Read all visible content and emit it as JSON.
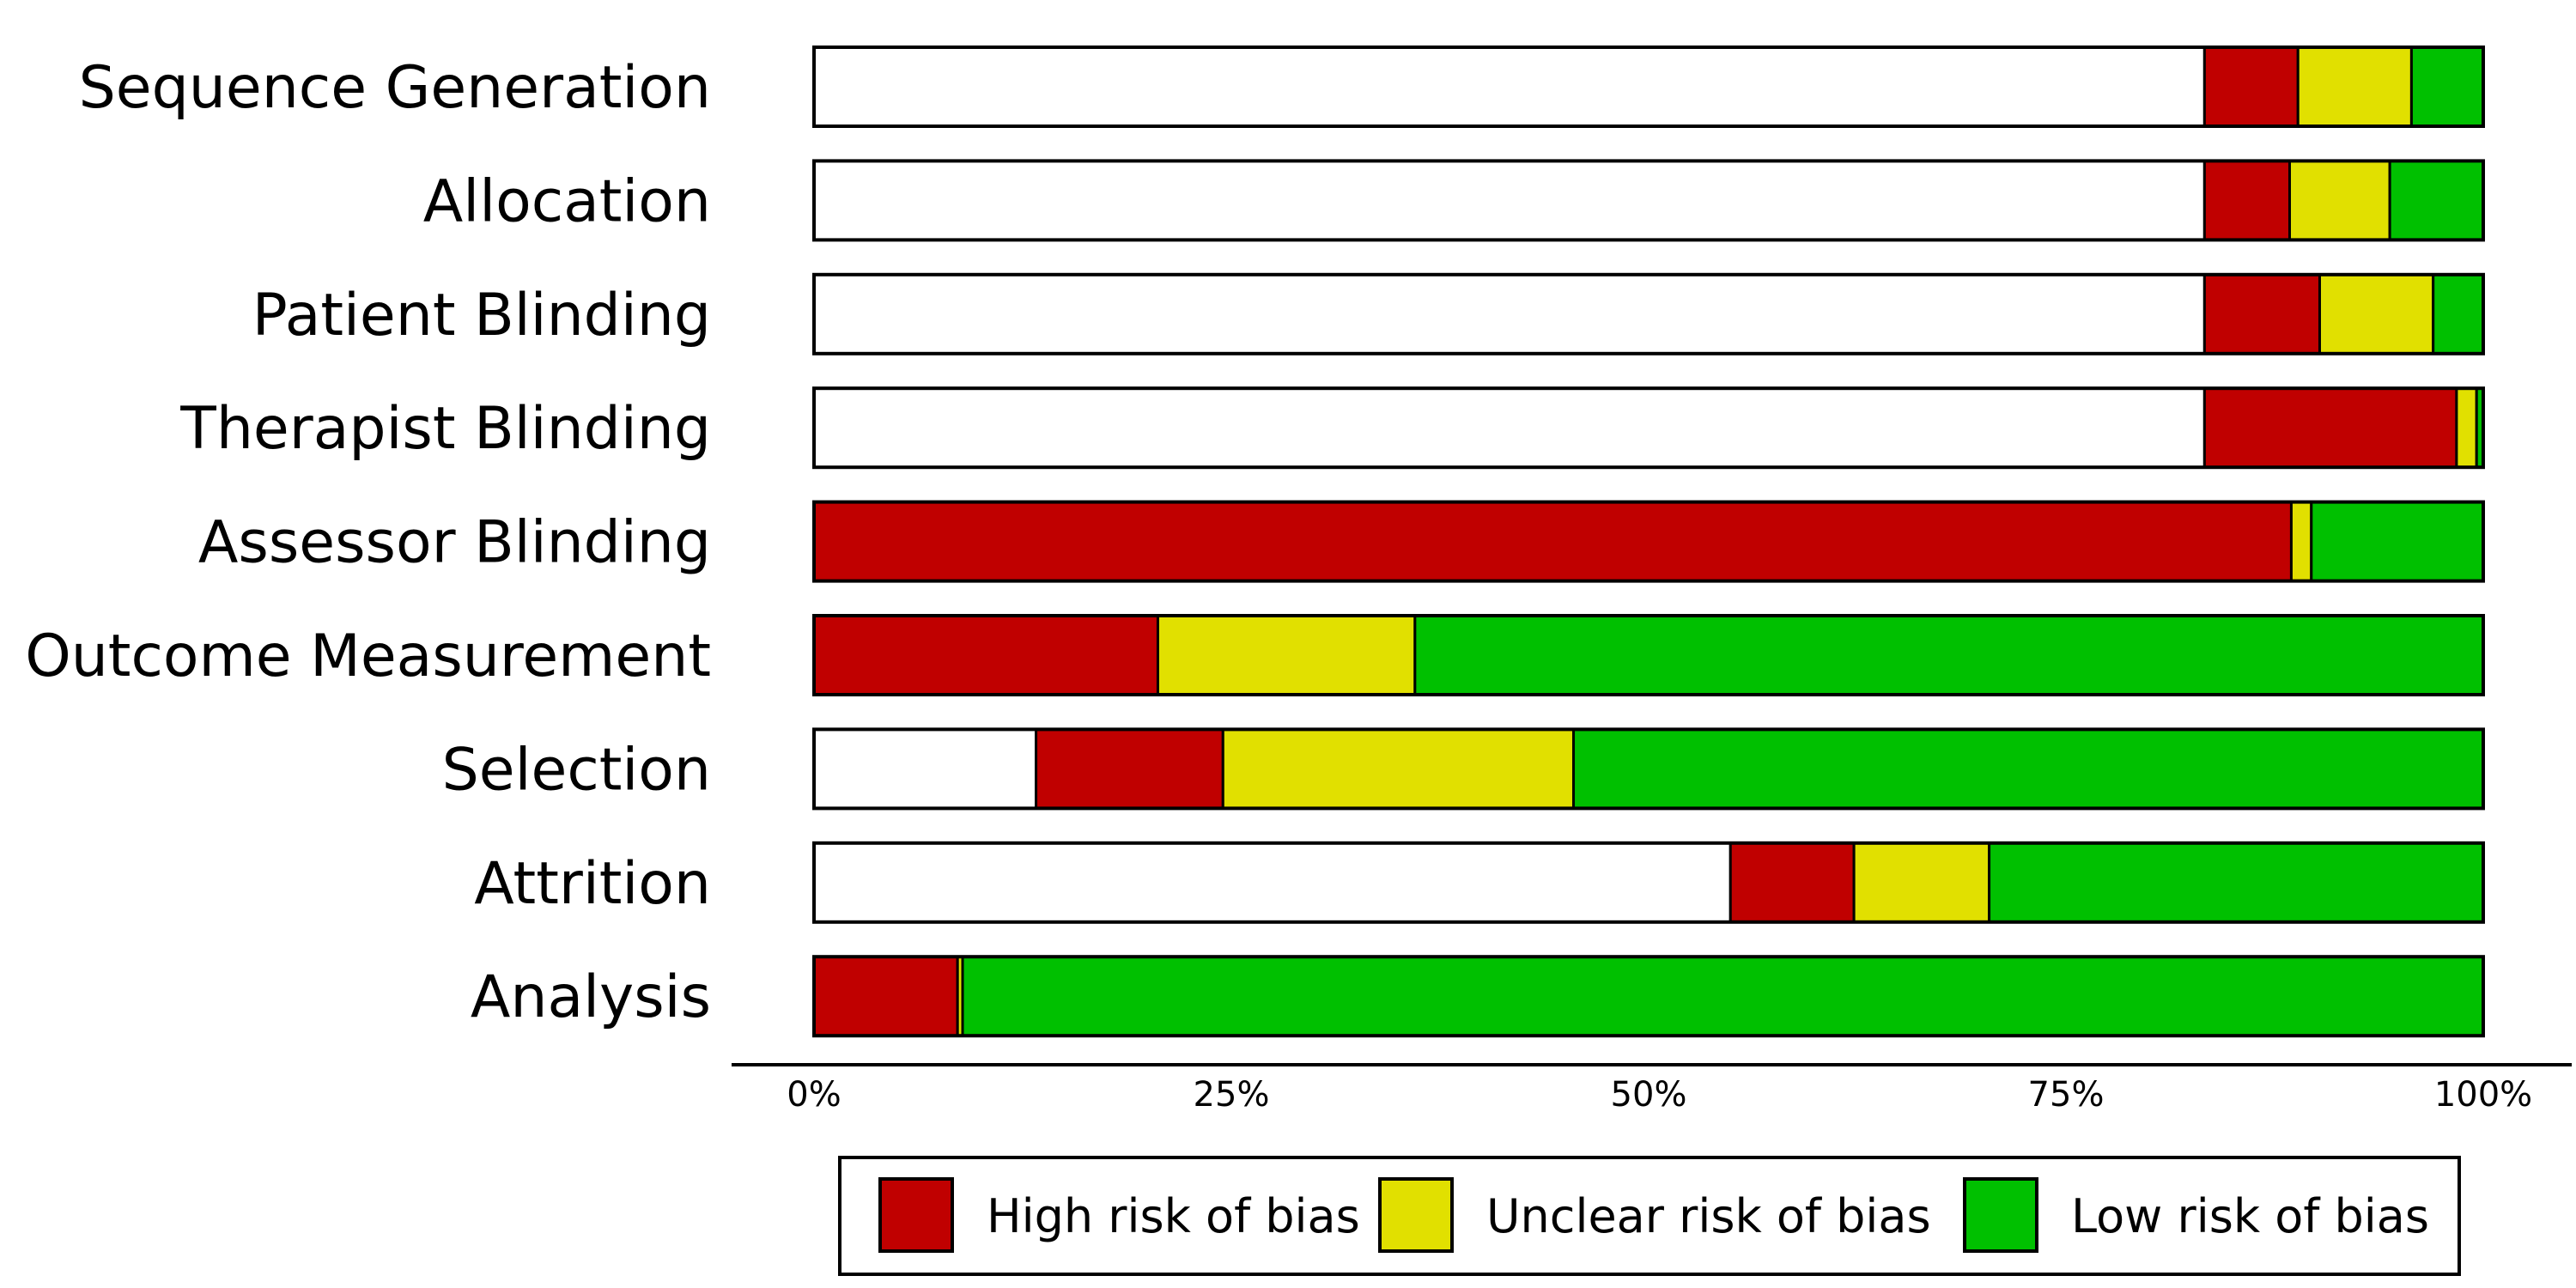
{
  "chart_data": {
    "type": "bar",
    "orientation": "horizontal",
    "stacked": true,
    "xlim": [
      0,
      100
    ],
    "x_ticks": [
      "0%",
      "25%",
      "50%",
      "75%",
      "100%"
    ],
    "categories": [
      "Sequence Generation",
      "Allocation",
      "Patient Blinding",
      "Therapist Blinding",
      "Assessor Blinding",
      "Outcome Measurement",
      "Selection",
      "Attrition",
      "Analysis"
    ],
    "series": [
      {
        "name": "",
        "color": "#ffffff",
        "values": [
          83.3,
          83.3,
          83.3,
          83.3,
          0,
          0,
          13.3,
          54.9,
          0
        ]
      },
      {
        "name": "High risk of bias",
        "color": "#c00000",
        "values": [
          5.6,
          5.1,
          6.9,
          15.1,
          88.5,
          20.6,
          11.2,
          7.4,
          8.6
        ]
      },
      {
        "name": "Unclear risk of bias",
        "color": "#e1e000",
        "values": [
          6.8,
          6.0,
          6.8,
          1.2,
          1.2,
          15.4,
          21.0,
          8.1,
          0.3
        ]
      },
      {
        "name": "Low risk of bias",
        "color": "#00c000",
        "values": [
          4.3,
          5.6,
          3.0,
          0.4,
          10.3,
          64.0,
          54.5,
          29.6,
          91.1
        ]
      }
    ],
    "legend": {
      "placement": "bottom",
      "entries": [
        "High risk of bias",
        "Unclear risk of bias",
        "Low risk of bias"
      ]
    },
    "grid": false
  }
}
